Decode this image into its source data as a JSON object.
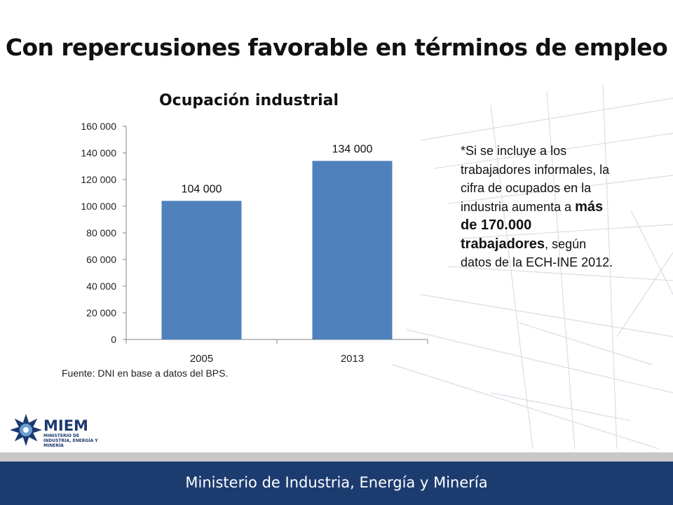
{
  "slide": {
    "title": "Con repercusiones favorable en términos de empleo",
    "source": "Fuente: DNI en base a datos del BPS."
  },
  "note": {
    "line1": "*Si se incluye a los trabajadores informales, la cifra de ocupados en la industria aumenta a",
    "emphasis": "más de 170.000 trabajadores",
    "line2": ", según datos de la ECH-INE 2012."
  },
  "logo": {
    "name": "MIEM",
    "subtitle": "MINISTERIO DE INDUSTRIA, ENERGÍA Y MINERÍA"
  },
  "footer": {
    "text": "Ministerio de Industria, Energía y Minería"
  },
  "colors": {
    "bar": "#4f81bd",
    "footer": "#1c3c70",
    "logo": "#1c3a70"
  },
  "chart_data": {
    "type": "bar",
    "title": "Ocupación industrial",
    "categories": [
      "2005",
      "2013"
    ],
    "values": [
      104000,
      134000
    ],
    "value_labels": [
      "104 000",
      "134 000"
    ],
    "ylim": [
      0,
      160000
    ],
    "yticks": [
      0,
      20000,
      40000,
      60000,
      80000,
      100000,
      120000,
      140000,
      160000
    ],
    "ytick_labels": [
      "0",
      "20 000",
      "40 000",
      "60 000",
      "80 000",
      "100 000",
      "120 000",
      "140 000",
      "160 000"
    ],
    "grid": false,
    "xlabel": "",
    "ylabel": ""
  }
}
